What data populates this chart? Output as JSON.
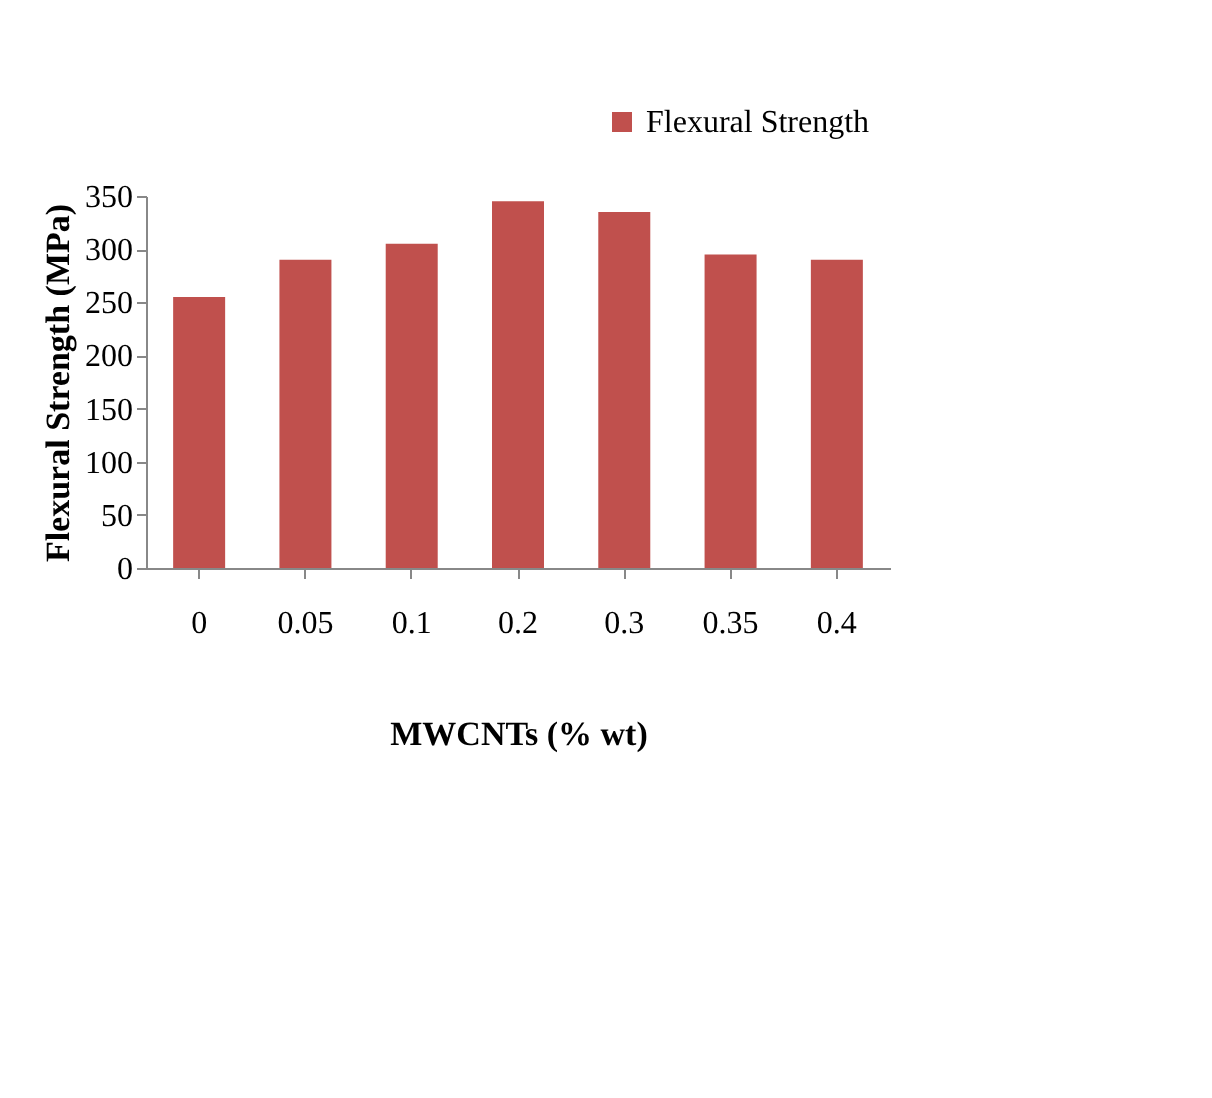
{
  "chart_data": {
    "type": "bar",
    "xlabel": "MWCNTs (% wt)",
    "ylabel": "Flexural Strength (MPa)",
    "categories": [
      "0",
      "0.05",
      "0.1",
      "0.2",
      "0.3",
      "0.35",
      "0.4"
    ],
    "series": [
      {
        "name": "Flexural Strength",
        "color": "#c0504d",
        "values": [
          255,
          290,
          305,
          345,
          335,
          295,
          290
        ]
      }
    ],
    "ylim": [
      0,
      350
    ],
    "yticks": [
      0,
      50,
      100,
      150,
      200,
      250,
      300,
      350
    ],
    "grid": false,
    "legend": "top right"
  }
}
